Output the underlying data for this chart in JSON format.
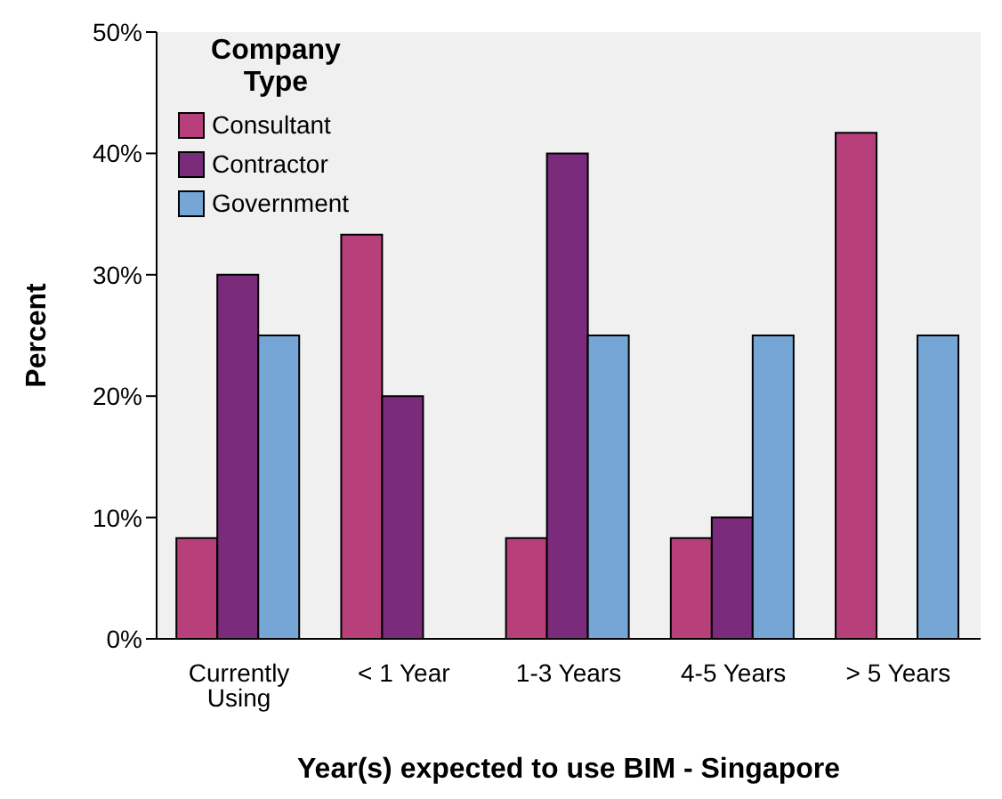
{
  "chart_data": {
    "type": "bar",
    "xlabel": "Year(s) expected to use BIM - Singapore",
    "ylabel": "Percent",
    "legend_title": "Company Type",
    "categories": [
      "Currently Using",
      "< 1 Year",
      "1-3 Years",
      "4-5 Years",
      "> 5 Years"
    ],
    "series": [
      {
        "name": "Consultant",
        "color": "#b8407a",
        "values": [
          8.3,
          33.3,
          8.3,
          8.3,
          41.7
        ]
      },
      {
        "name": "Contractor",
        "color": "#7b2b7b",
        "values": [
          30,
          20,
          40,
          10,
          0
        ]
      },
      {
        "name": "Government",
        "color": "#75a6d6",
        "values": [
          25,
          0,
          25,
          25,
          25
        ]
      }
    ],
    "ylim": [
      0,
      50
    ],
    "yticks": [
      {
        "value": 0,
        "label": "0%"
      },
      {
        "value": 10,
        "label": "10%"
      },
      {
        "value": 20,
        "label": "20%"
      },
      {
        "value": 30,
        "label": "30%"
      },
      {
        "value": 40,
        "label": "40%"
      },
      {
        "value": 50,
        "label": "50%"
      }
    ],
    "grid": false,
    "legend": "top left"
  }
}
